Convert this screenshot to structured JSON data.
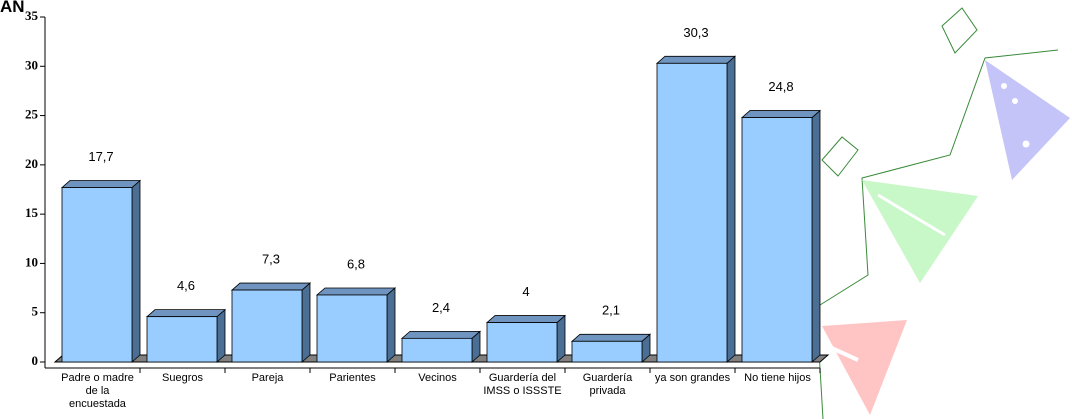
{
  "chart_data": {
    "type": "bar3d",
    "title": "AN",
    "categories": [
      "Padre o madre de la encuestada",
      "Suegros",
      "Pareja",
      "Parientes",
      "Vecinos",
      "Guardería del IMSS o ISSSTE",
      "Guardería privada",
      "ya son grandes",
      "No tiene hijos"
    ],
    "values": [
      17.7,
      4.6,
      7.3,
      6.8,
      2.4,
      4,
      2.1,
      30.3,
      24.8
    ],
    "value_labels": [
      "17,7",
      "4,6",
      "7,3",
      "6,8",
      "2,4",
      "4",
      "2,1",
      "30,3",
      "24,8"
    ],
    "color": "#99ccff",
    "ylim": [
      0,
      35
    ],
    "yticks": [
      0,
      5,
      10,
      15,
      20,
      25,
      30,
      35
    ]
  }
}
